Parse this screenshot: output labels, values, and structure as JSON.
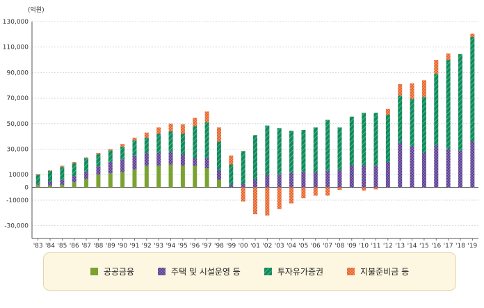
{
  "chart_data": {
    "type": "bar",
    "stacked": true,
    "unit_label": "(억원)",
    "title": "",
    "xlabel": "",
    "ylabel": "",
    "ylim": [
      -40000,
      130000
    ],
    "yticks": [
      130000,
      110000,
      90000,
      70000,
      50000,
      30000,
      10000,
      0,
      -10000,
      -30000
    ],
    "ytick_labels": [
      "130,000",
      "110,000",
      "90,000",
      "70,000",
      "50,000",
      "30,000",
      "10000",
      "0",
      "-10000",
      "-30,000"
    ],
    "grid": true,
    "legend_position": "bottom",
    "categories": [
      "'83",
      "'84",
      "'85",
      "'86",
      "'87",
      "'88",
      "'89",
      "'90",
      "'91",
      "'92",
      "'93",
      "'94",
      "'95",
      "'96",
      "'97",
      "'98",
      "'99",
      "'00",
      "'01",
      "'02",
      "'03",
      "'04",
      "'05",
      "'06",
      "'07",
      "'08",
      "'09",
      "'10",
      "'11",
      "'12",
      "'13",
      "'14",
      "'15",
      "'16",
      "'17",
      "'18",
      "'19"
    ],
    "series": [
      {
        "name": "공공금융",
        "color": "#7aa232",
        "pattern": "solid",
        "values": [
          2000,
          1500,
          2000,
          4000,
          6500,
          10000,
          11000,
          12000,
          14000,
          17000,
          17000,
          18000,
          17000,
          17000,
          15000,
          6000,
          0,
          0,
          0,
          0,
          0,
          0,
          0,
          0,
          0,
          0,
          0,
          0,
          0,
          0,
          0,
          0,
          0,
          0,
          0,
          0,
          0
        ]
      },
      {
        "name": "주택 및 시설운영 등",
        "color": "#5c3f8f",
        "pattern": "dots",
        "values": [
          1000,
          3000,
          4000,
          5000,
          6000,
          6500,
          9000,
          10000,
          11000,
          10000,
          10000,
          10000,
          9000,
          6000,
          8000,
          8000,
          2000,
          2500,
          6500,
          10000,
          10500,
          11500,
          12500,
          12000,
          13000,
          13500,
          17500,
          17000,
          17000,
          20000,
          35000,
          32500,
          27000,
          33000,
          30000,
          29000,
          36000
        ]
      },
      {
        "name": "투자유가증권",
        "color": "#138a5c",
        "pattern": "hatch",
        "values": [
          7000,
          8500,
          10000,
          10000,
          10500,
          9500,
          9000,
          10000,
          12000,
          12000,
          15000,
          16000,
          16000,
          25000,
          28000,
          22000,
          16000,
          26000,
          34500,
          38500,
          36000,
          33000,
          32500,
          35000,
          40000,
          33500,
          38000,
          41500,
          41500,
          37000,
          37000,
          37000,
          44000,
          56000,
          70000,
          75500,
          82000
        ]
      },
      {
        "name": "지불준비금 등",
        "color": "#e8622a",
        "pattern": "dots",
        "values": [
          500,
          500,
          1000,
          1000,
          500,
          1000,
          1000,
          2000,
          2000,
          4000,
          5000,
          6000,
          7500,
          6500,
          8500,
          11000,
          7000,
          -11000,
          -21000,
          -22000,
          -17000,
          -12500,
          -8500,
          -6500,
          -6500,
          -2000,
          0,
          -2500,
          -1500,
          4500,
          9000,
          12000,
          13000,
          11000,
          5000,
          0,
          2500
        ]
      }
    ]
  }
}
